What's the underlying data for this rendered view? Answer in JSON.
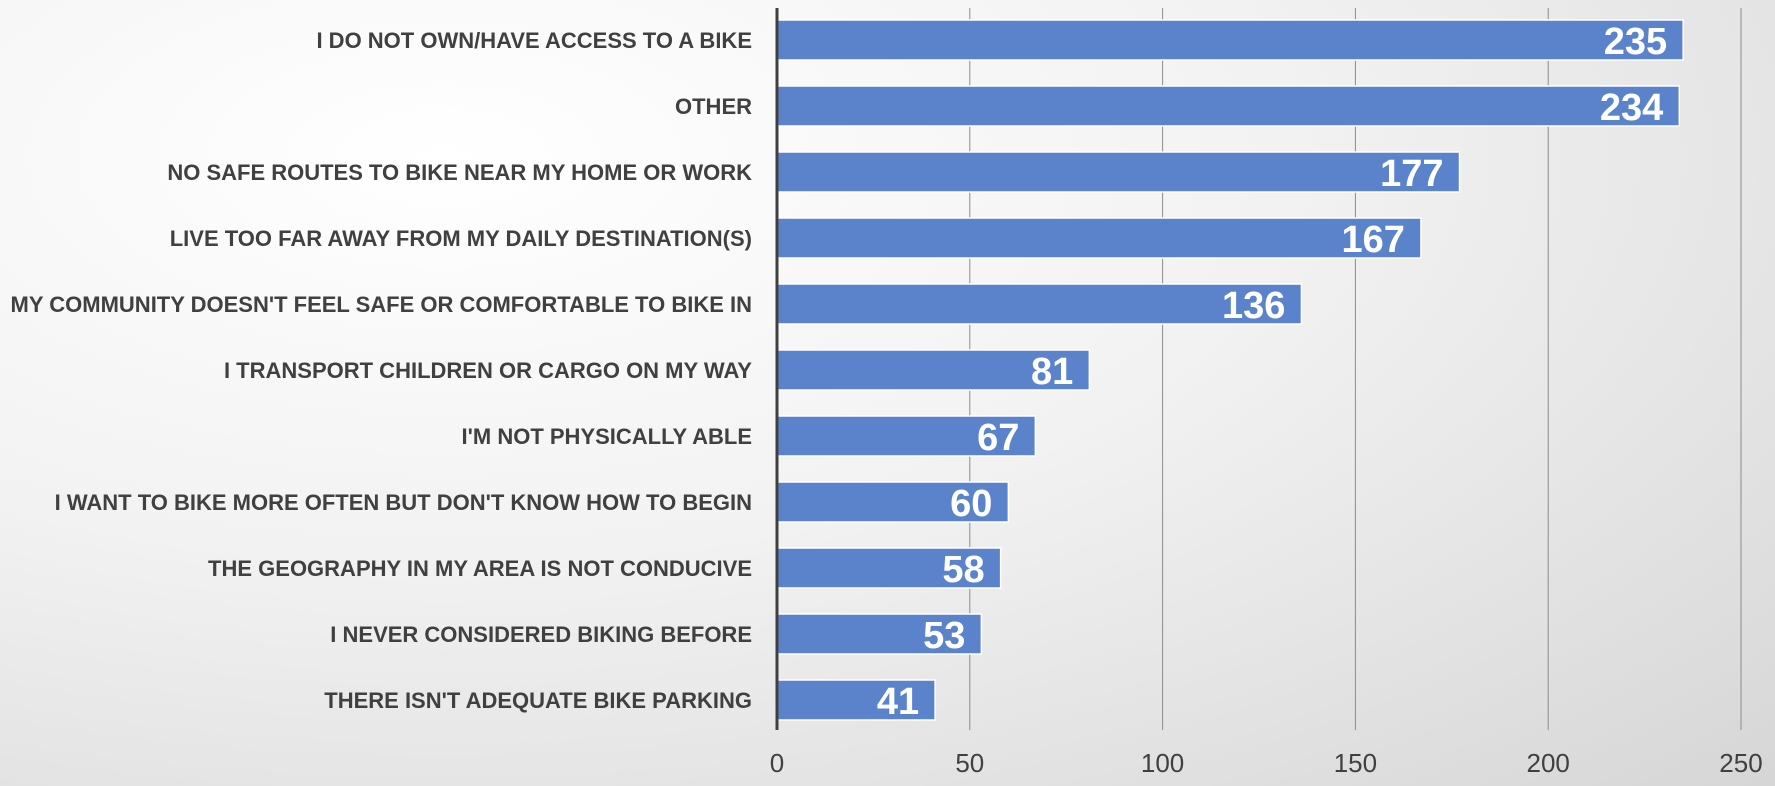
{
  "chart_data": {
    "type": "bar",
    "orientation": "horizontal",
    "title": "",
    "xlabel": "",
    "ylabel": "",
    "categories": [
      "I DO NOT OWN/HAVE ACCESS TO A BIKE",
      "OTHER",
      "NO SAFE ROUTES TO BIKE NEAR MY HOME OR WORK",
      "LIVE TOO FAR AWAY FROM MY DAILY DESTINATION(S)",
      "MY COMMUNITY DOESN'T FEEL SAFE OR COMFORTABLE TO BIKE IN",
      "I TRANSPORT CHILDREN OR CARGO ON MY WAY",
      "I'M NOT PHYSICALLY ABLE",
      "I WANT TO BIKE MORE OFTEN BUT DON'T KNOW HOW TO BEGIN",
      "THE GEOGRAPHY IN MY AREA IS NOT CONDUCIVE",
      "I NEVER CONSIDERED BIKING BEFORE",
      "THERE ISN'T ADEQUATE BIKE PARKING"
    ],
    "values": [
      235,
      234,
      177,
      167,
      136,
      81,
      67,
      60,
      58,
      53,
      41
    ],
    "xlim": [
      0,
      250
    ],
    "xticks": [
      "0",
      "50",
      "100",
      "150",
      "200",
      "250"
    ],
    "grid": true,
    "data_labels": true,
    "colors": {
      "bar": "#5b83cc",
      "bar_edge": "#ffffff",
      "data_label": "#ffffff",
      "category_text": "#404040",
      "axis": "#404040",
      "grid": "#8c8c8c"
    }
  }
}
